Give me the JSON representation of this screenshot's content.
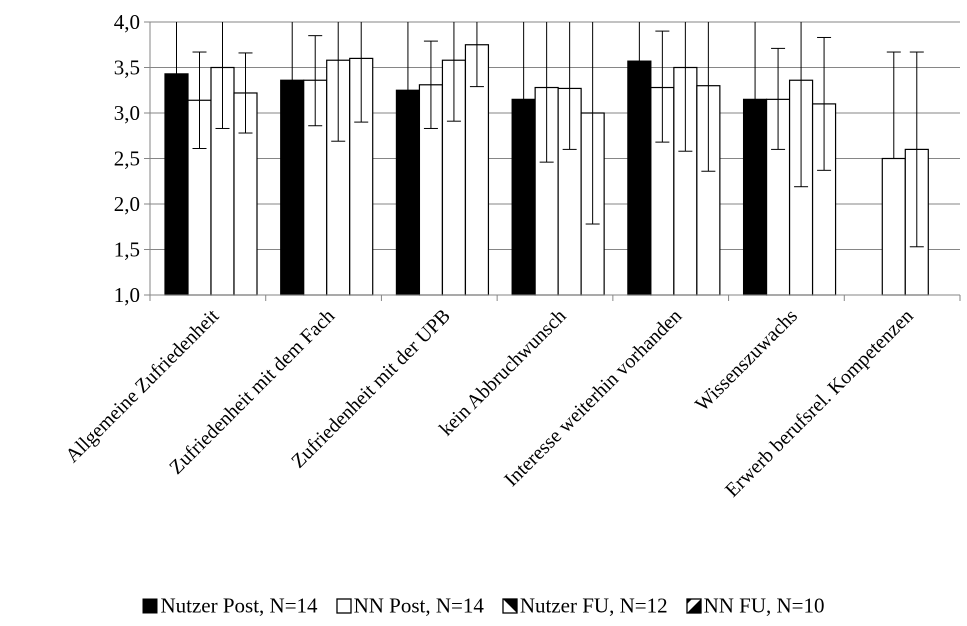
{
  "chart_data": {
    "type": "bar",
    "title": "",
    "xlabel": "",
    "ylabel": "",
    "ylim": [
      1.0,
      4.0
    ],
    "yticks": [
      "1,0",
      "1,5",
      "2,0",
      "2,5",
      "3,0",
      "3,5",
      "4,0"
    ],
    "grid": true,
    "legend_position": "bottom",
    "categories": [
      "Allgemeine Zufriedenheit",
      "Zufriedenheit mit dem Fach",
      "Zufriedenheit mit der UPB",
      "kein Abbruchwunsch",
      "Interesse weiterhin vorhanden",
      "Wissenszuwachs",
      "Erwerb berufsrel. Kompetenzen"
    ],
    "series": [
      {
        "name": "Nutzer Post, N=14",
        "fill": "#000000",
        "values": [
          3.43,
          3.36,
          3.25,
          3.15,
          3.57,
          3.15,
          null
        ],
        "err_low": [
          2.8,
          2.7,
          2.55,
          2.35,
          3.0,
          2.55,
          null
        ],
        "err_high": [
          4.0,
          4.0,
          4.0,
          4.0,
          4.0,
          4.0,
          null
        ]
      },
      {
        "name": "NN Post, N=14",
        "fill": "#ffffff",
        "values": [
          3.14,
          3.36,
          3.31,
          3.28,
          3.28,
          3.15,
          2.5
        ],
        "err_low": [
          2.61,
          2.86,
          2.83,
          2.46,
          2.68,
          2.6,
          null
        ],
        "err_high": [
          3.67,
          3.85,
          3.79,
          4.0,
          3.9,
          3.71,
          3.67
        ]
      },
      {
        "name": "Nutzer FU, N=12",
        "fill": "#ffffff",
        "values": [
          3.5,
          3.58,
          3.58,
          3.27,
          3.5,
          3.36,
          2.6
        ],
        "err_low": [
          2.83,
          2.69,
          2.91,
          2.6,
          2.58,
          2.19,
          1.53
        ],
        "err_high": [
          4.0,
          4.0,
          4.0,
          4.0,
          4.0,
          4.0,
          3.67
        ]
      },
      {
        "name": "NN FU, N=10",
        "fill": "#ffffff",
        "values": [
          3.22,
          3.6,
          3.75,
          3.0,
          3.3,
          3.1,
          null
        ],
        "err_low": [
          2.78,
          2.9,
          3.29,
          1.78,
          2.36,
          2.37,
          null
        ],
        "err_high": [
          3.66,
          4.0,
          4.0,
          4.0,
          4.0,
          3.83,
          null
        ]
      }
    ]
  }
}
